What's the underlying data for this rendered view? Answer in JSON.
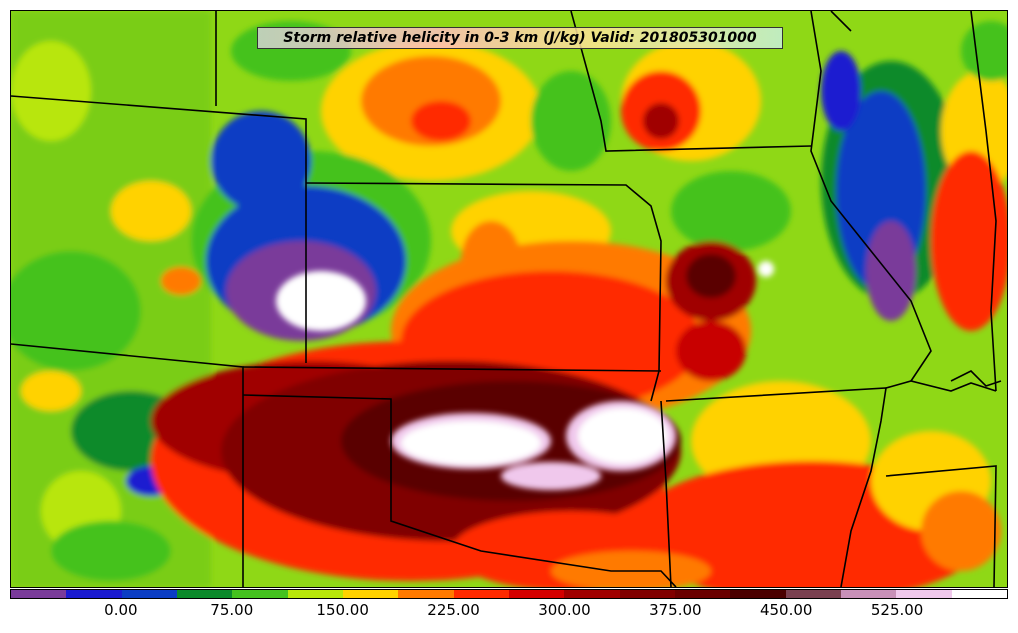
{
  "title": "Storm relative helicity in 0-3 km (J/kg) Valid: 201805301000",
  "colorbar": {
    "colors": [
      "#7a3b9a",
      "#1a1ad0",
      "#0b3dc4",
      "#0b8a2b",
      "#44c21e",
      "#b8e60a",
      "#ffd200",
      "#ff7a00",
      "#ff2a00",
      "#d40000",
      "#a00000",
      "#800000",
      "#6a0000",
      "#4a0000",
      "#7a4050",
      "#c890b8",
      "#f0c8ec",
      "#ffffff"
    ],
    "tick_labels": [
      "0.00",
      "75.00",
      "150.00",
      "225.00",
      "300.00",
      "375.00",
      "450.00",
      "525.00"
    ]
  },
  "palette": {
    "purple": "#7a3b9a",
    "blue": "#1a1ad0",
    "darkblue": "#0b3dc4",
    "darkgreen": "#0b8a2b",
    "green": "#44c21e",
    "lime": "#b8e60a",
    "yellow": "#ffd200",
    "orange": "#ff7a00",
    "red": "#ff2a00",
    "darkred": "#c80000",
    "maroon": "#7a0000",
    "white": "#ffffff",
    "pink": "#f0c8ec"
  }
}
